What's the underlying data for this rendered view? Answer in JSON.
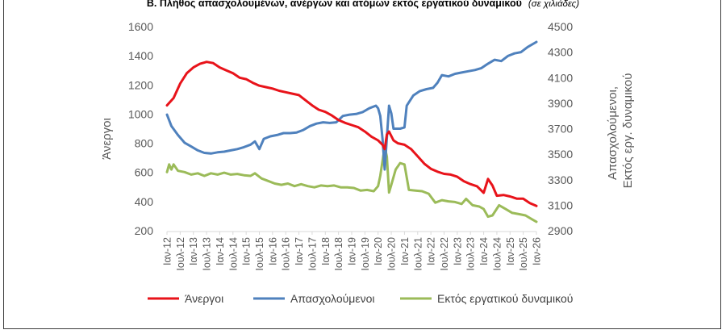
{
  "title": "Β. Πλήθος απασχολουμένων, ανέργων και ατόμων εκτός εργατικού δυναμικού",
  "subtitle": "(σε χιλιάδες)",
  "chart_data": {
    "type": "line",
    "ylabel_left": "Άνεργοι",
    "ylabel_right_line1": "Απασχολούμενοι,",
    "ylabel_right_line2": "Εκτός εργ. δυναμικού",
    "ylim_left": [
      200,
      1600
    ],
    "yticks_left": [
      "200",
      "400",
      "600",
      "800",
      "1000",
      "1200",
      "1400",
      "1600"
    ],
    "ylim_right": [
      2900,
      4500
    ],
    "yticks_right": [
      "2900",
      "3100",
      "3300",
      "3500",
      "3700",
      "3900",
      "4100",
      "4300",
      "4500"
    ],
    "x_range": [
      "2012-01",
      "2026-01"
    ],
    "x_ticks": [
      {
        "date": "2012-01",
        "label": "Ιαν-12"
      },
      {
        "date": "2012-07",
        "label": "Ιουλ-12"
      },
      {
        "date": "2013-01",
        "label": "Ιαν-13"
      },
      {
        "date": "2013-07",
        "label": "Ιουλ-13"
      },
      {
        "date": "2014-01",
        "label": "Ιαν-14"
      },
      {
        "date": "2014-07",
        "label": "Ιουλ-14"
      },
      {
        "date": "2015-01",
        "label": "Ιαν-15"
      },
      {
        "date": "2015-07",
        "label": "Ιουλ-15"
      },
      {
        "date": "2016-01",
        "label": "Ιαν-16"
      },
      {
        "date": "2016-07",
        "label": "Ιουλ-16"
      },
      {
        "date": "2017-01",
        "label": "Ιαν-17"
      },
      {
        "date": "2017-07",
        "label": "Ιουλ-17"
      },
      {
        "date": "2018-01",
        "label": "Ιαν-18"
      },
      {
        "date": "2018-07",
        "label": "Ιουλ-18"
      },
      {
        "date": "2019-01",
        "label": "Ιαν-19"
      },
      {
        "date": "2019-07",
        "label": "Ιουλ-19"
      },
      {
        "date": "2020-01",
        "label": "Ιαν-20"
      },
      {
        "date": "2020-07",
        "label": "Ιουλ-20"
      },
      {
        "date": "2021-01",
        "label": "Ιαν-21"
      },
      {
        "date": "2021-07",
        "label": "Ιουλ-21"
      },
      {
        "date": "2022-01",
        "label": "Ιαν-22"
      },
      {
        "date": "2022-07",
        "label": "Ιουλ-22"
      },
      {
        "date": "2023-01",
        "label": "Ιαν-23"
      },
      {
        "date": "2023-07",
        "label": "Ιουλ-23"
      },
      {
        "date": "2024-01",
        "label": "Ιαν-24"
      },
      {
        "date": "2024-07",
        "label": "Ιουλ-24"
      },
      {
        "date": "2025-01",
        "label": "Ιαν-25"
      },
      {
        "date": "2025-07",
        "label": "Ιουλ-25"
      },
      {
        "date": "2026-01",
        "label": "Ιαν-26"
      }
    ],
    "grid": false,
    "legend_position": "bottom",
    "series": [
      {
        "name": "Άνεργοι",
        "axis": "left",
        "color": "#e8131a",
        "points": [
          [
            "2012-01",
            1060
          ],
          [
            "2012-04",
            1110
          ],
          [
            "2012-07",
            1210
          ],
          [
            "2012-10",
            1280
          ],
          [
            "2013-01",
            1320
          ],
          [
            "2013-04",
            1345
          ],
          [
            "2013-07",
            1358
          ],
          [
            "2013-10",
            1350
          ],
          [
            "2014-01",
            1320
          ],
          [
            "2014-04",
            1300
          ],
          [
            "2014-07",
            1280
          ],
          [
            "2014-10",
            1250
          ],
          [
            "2015-01",
            1240
          ],
          [
            "2015-04",
            1215
          ],
          [
            "2015-07",
            1195
          ],
          [
            "2015-10",
            1185
          ],
          [
            "2016-01",
            1175
          ],
          [
            "2016-04",
            1160
          ],
          [
            "2016-07",
            1150
          ],
          [
            "2016-10",
            1140
          ],
          [
            "2017-01",
            1130
          ],
          [
            "2017-04",
            1095
          ],
          [
            "2017-07",
            1060
          ],
          [
            "2017-10",
            1030
          ],
          [
            "2018-01",
            1015
          ],
          [
            "2018-04",
            990
          ],
          [
            "2018-07",
            960
          ],
          [
            "2018-10",
            940
          ],
          [
            "2019-01",
            925
          ],
          [
            "2019-04",
            910
          ],
          [
            "2019-07",
            880
          ],
          [
            "2019-10",
            845
          ],
          [
            "2020-01",
            820
          ],
          [
            "2020-03",
            790
          ],
          [
            "2020-04",
            760
          ],
          [
            "2020-05",
            860
          ],
          [
            "2020-06",
            880
          ],
          [
            "2020-08",
            820
          ],
          [
            "2020-10",
            800
          ],
          [
            "2021-01",
            790
          ],
          [
            "2021-04",
            760
          ],
          [
            "2021-07",
            710
          ],
          [
            "2021-10",
            660
          ],
          [
            "2022-01",
            625
          ],
          [
            "2022-04",
            605
          ],
          [
            "2022-07",
            590
          ],
          [
            "2022-10",
            585
          ],
          [
            "2023-01",
            570
          ],
          [
            "2023-04",
            540
          ],
          [
            "2023-07",
            520
          ],
          [
            "2023-10",
            505
          ],
          [
            "2024-01",
            460
          ],
          [
            "2024-03",
            555
          ],
          [
            "2024-05",
            510
          ],
          [
            "2024-07",
            440
          ],
          [
            "2024-10",
            445
          ],
          [
            "2025-01",
            435
          ],
          [
            "2025-04",
            420
          ],
          [
            "2025-07",
            420
          ],
          [
            "2025-10",
            390
          ],
          [
            "2026-01",
            370
          ]
        ]
      },
      {
        "name": "Απασχολούμενοι",
        "axis": "right",
        "color": "#4f81bd",
        "points": [
          [
            "2012-01",
            3810
          ],
          [
            "2012-03",
            3720
          ],
          [
            "2012-06",
            3650
          ],
          [
            "2012-09",
            3590
          ],
          [
            "2012-12",
            3560
          ],
          [
            "2013-03",
            3530
          ],
          [
            "2013-06",
            3510
          ],
          [
            "2013-09",
            3505
          ],
          [
            "2013-12",
            3515
          ],
          [
            "2014-03",
            3520
          ],
          [
            "2014-06",
            3530
          ],
          [
            "2014-09",
            3540
          ],
          [
            "2014-12",
            3555
          ],
          [
            "2015-03",
            3575
          ],
          [
            "2015-05",
            3600
          ],
          [
            "2015-07",
            3540
          ],
          [
            "2015-09",
            3620
          ],
          [
            "2015-12",
            3640
          ],
          [
            "2016-03",
            3650
          ],
          [
            "2016-06",
            3665
          ],
          [
            "2016-09",
            3665
          ],
          [
            "2016-12",
            3670
          ],
          [
            "2017-03",
            3690
          ],
          [
            "2017-06",
            3720
          ],
          [
            "2017-09",
            3740
          ],
          [
            "2017-12",
            3750
          ],
          [
            "2018-03",
            3745
          ],
          [
            "2018-06",
            3750
          ],
          [
            "2018-09",
            3800
          ],
          [
            "2018-12",
            3810
          ],
          [
            "2019-03",
            3815
          ],
          [
            "2019-06",
            3830
          ],
          [
            "2019-09",
            3860
          ],
          [
            "2019-12",
            3880
          ],
          [
            "2020-01",
            3860
          ],
          [
            "2020-02",
            3800
          ],
          [
            "2020-03",
            3620
          ],
          [
            "2020-04",
            3380
          ],
          [
            "2020-06",
            3880
          ],
          [
            "2020-07",
            3820
          ],
          [
            "2020-08",
            3700
          ],
          [
            "2020-11",
            3700
          ],
          [
            "2021-01",
            3710
          ],
          [
            "2021-02",
            3880
          ],
          [
            "2021-05",
            3960
          ],
          [
            "2021-08",
            3995
          ],
          [
            "2021-11",
            4010
          ],
          [
            "2022-02",
            4020
          ],
          [
            "2022-04",
            4060
          ],
          [
            "2022-06",
            4120
          ],
          [
            "2022-09",
            4110
          ],
          [
            "2022-12",
            4130
          ],
          [
            "2023-03",
            4140
          ],
          [
            "2023-06",
            4150
          ],
          [
            "2023-09",
            4160
          ],
          [
            "2023-12",
            4175
          ],
          [
            "2024-03",
            4210
          ],
          [
            "2024-06",
            4240
          ],
          [
            "2024-09",
            4230
          ],
          [
            "2024-12",
            4270
          ],
          [
            "2025-03",
            4290
          ],
          [
            "2025-06",
            4300
          ],
          [
            "2025-09",
            4340
          ],
          [
            "2026-01",
            4380
          ]
        ]
      },
      {
        "name": "Εκτός εργατικού δυναμικού",
        "axis": "right",
        "color": "#9bbb59",
        "points": [
          [
            "2012-01",
            3360
          ],
          [
            "2012-02",
            3420
          ],
          [
            "2012-03",
            3380
          ],
          [
            "2012-04",
            3420
          ],
          [
            "2012-06",
            3370
          ],
          [
            "2012-09",
            3360
          ],
          [
            "2012-12",
            3340
          ],
          [
            "2013-03",
            3350
          ],
          [
            "2013-06",
            3330
          ],
          [
            "2013-09",
            3350
          ],
          [
            "2013-12",
            3340
          ],
          [
            "2014-03",
            3355
          ],
          [
            "2014-06",
            3340
          ],
          [
            "2014-09",
            3345
          ],
          [
            "2014-12",
            3335
          ],
          [
            "2015-03",
            3330
          ],
          [
            "2015-05",
            3350
          ],
          [
            "2015-08",
            3310
          ],
          [
            "2015-11",
            3290
          ],
          [
            "2016-02",
            3270
          ],
          [
            "2016-05",
            3260
          ],
          [
            "2016-08",
            3270
          ],
          [
            "2016-11",
            3250
          ],
          [
            "2017-02",
            3265
          ],
          [
            "2017-05",
            3250
          ],
          [
            "2017-08",
            3240
          ],
          [
            "2017-11",
            3255
          ],
          [
            "2018-02",
            3250
          ],
          [
            "2018-05",
            3255
          ],
          [
            "2018-08",
            3240
          ],
          [
            "2018-11",
            3240
          ],
          [
            "2019-02",
            3235
          ],
          [
            "2019-05",
            3215
          ],
          [
            "2019-08",
            3220
          ],
          [
            "2019-11",
            3210
          ],
          [
            "2020-01",
            3250
          ],
          [
            "2020-02",
            3330
          ],
          [
            "2020-04",
            3560
          ],
          [
            "2020-05",
            3480
          ],
          [
            "2020-06",
            3200
          ],
          [
            "2020-07",
            3260
          ],
          [
            "2020-09",
            3380
          ],
          [
            "2020-11",
            3430
          ],
          [
            "2021-01",
            3420
          ],
          [
            "2021-03",
            3220
          ],
          [
            "2021-06",
            3215
          ],
          [
            "2021-09",
            3210
          ],
          [
            "2021-12",
            3190
          ],
          [
            "2022-03",
            3120
          ],
          [
            "2022-06",
            3140
          ],
          [
            "2022-09",
            3130
          ],
          [
            "2022-12",
            3125
          ],
          [
            "2023-03",
            3110
          ],
          [
            "2023-05",
            3150
          ],
          [
            "2023-08",
            3100
          ],
          [
            "2023-11",
            3090
          ],
          [
            "2024-01",
            3070
          ],
          [
            "2024-03",
            3010
          ],
          [
            "2024-05",
            3020
          ],
          [
            "2024-08",
            3100
          ],
          [
            "2024-11",
            3070
          ],
          [
            "2025-02",
            3040
          ],
          [
            "2025-05",
            3030
          ],
          [
            "2025-08",
            3020
          ],
          [
            "2025-11",
            2990
          ],
          [
            "2026-01",
            2970
          ]
        ]
      }
    ]
  }
}
